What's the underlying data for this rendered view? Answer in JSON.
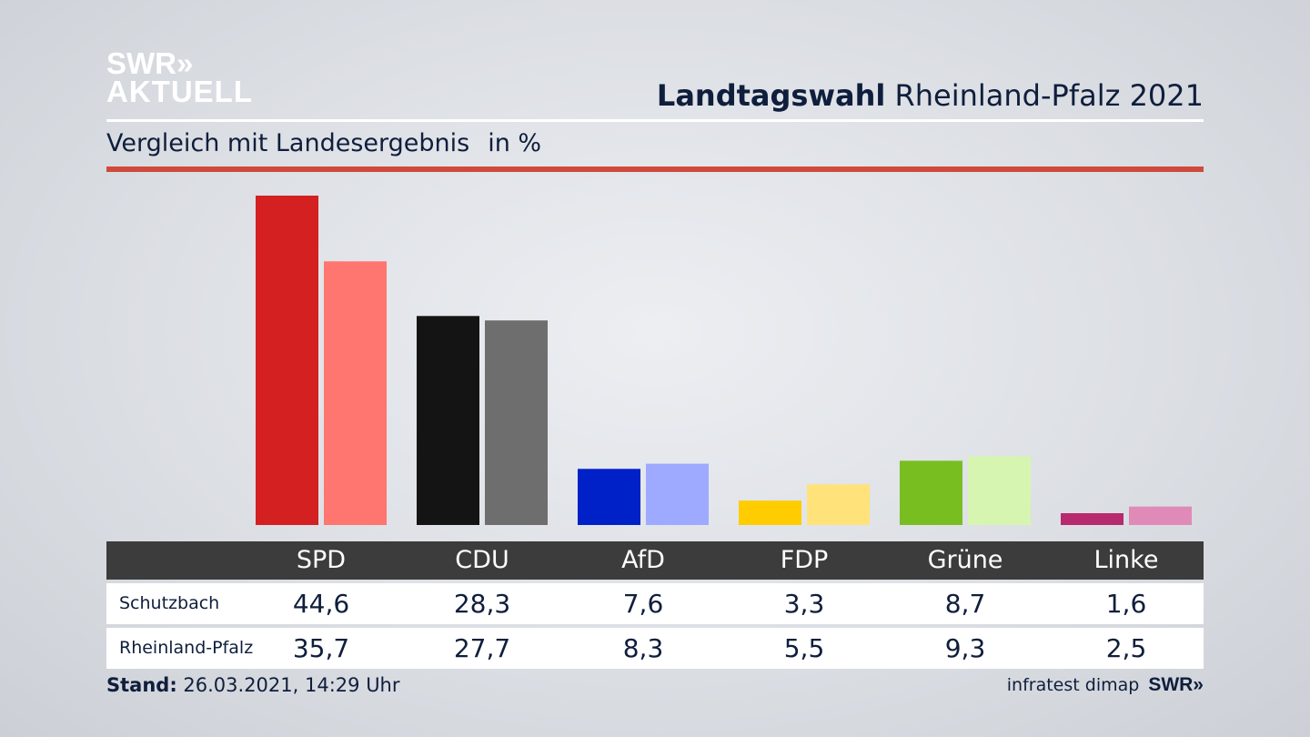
{
  "logo": {
    "line1": "SWR»",
    "line2": "AKTUELL"
  },
  "header": {
    "title_bold": "Landtagswahl",
    "title_rest": "Rheinland-Pfalz 2021"
  },
  "subtitle": {
    "text": "Vergleich mit Landesergebnis",
    "unit": "in %"
  },
  "colors": {
    "accent_red": "#cf4a3c",
    "table_header_bg": "#3c3c3c",
    "text_dark": "#0f1e3c"
  },
  "chart_data": {
    "type": "bar",
    "categories": [
      "SPD",
      "CDU",
      "AfD",
      "FDP",
      "Grüne",
      "Linke"
    ],
    "series": [
      {
        "name": "Schutzbach",
        "values": [
          44.6,
          28.3,
          7.6,
          3.3,
          8.7,
          1.6
        ],
        "colors": [
          "#d42020",
          "#141414",
          "#0020c8",
          "#ffcc00",
          "#78be20",
          "#b82a6e"
        ]
      },
      {
        "name": "Rheinland-Pfalz",
        "values": [
          35.7,
          27.7,
          8.3,
          5.5,
          9.3,
          2.5
        ],
        "colors": [
          "#ff7670",
          "#6e6e6e",
          "#9daaff",
          "#ffe27a",
          "#d6f5b0",
          "#e08ab8"
        ]
      }
    ],
    "ylim": [
      0,
      44.6
    ]
  },
  "table": {
    "rows": [
      {
        "label": "Schutzbach",
        "values": [
          "44,6",
          "28,3",
          "7,6",
          "3,3",
          "8,7",
          "1,6"
        ]
      },
      {
        "label": "Rheinland-Pfalz",
        "values": [
          "35,7",
          "27,7",
          "8,3",
          "5,5",
          "9,3",
          "2,5"
        ]
      }
    ]
  },
  "footer": {
    "stand_label": "Stand:",
    "stand_value": "26.03.2021, 14:29 Uhr",
    "source": "infratest dimap",
    "source_logo": "SWR»"
  }
}
